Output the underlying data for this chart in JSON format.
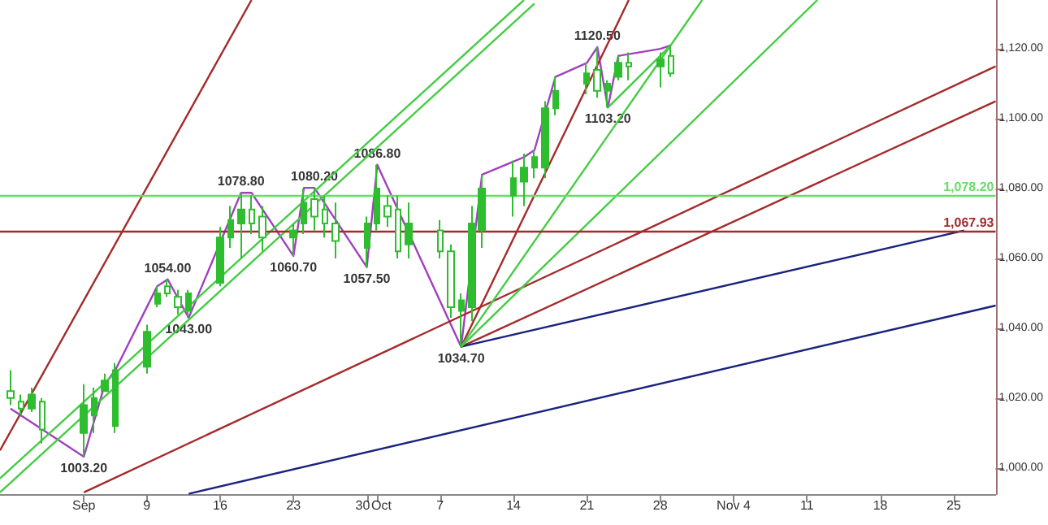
{
  "chart_data": {
    "type": "candlestick",
    "series": [
      {
        "type": "candlestick",
        "color": "#2ebd2e",
        "x": [
          "--08-27",
          "--08-28",
          "--08-29",
          "--08-30",
          "--09-03",
          "--09-04",
          "--09-05",
          "--09-06",
          "--09-09",
          "--09-10",
          "--09-11",
          "--09-12",
          "--09-13",
          "--09-16",
          "--09-17",
          "--09-18",
          "--09-19",
          "--09-20",
          "--09-23",
          "--09-24",
          "--09-25",
          "--09-26",
          "--09-27",
          "--09-30",
          "--10-01",
          "--10-02",
          "--10-03",
          "--10-04",
          "--10-07",
          "--10-08",
          "--10-09",
          "--10-10",
          "--10-11",
          "--10-14",
          "--10-15",
          "--10-16",
          "--10-17",
          "--10-18",
          "--10-21",
          "--10-22",
          "--10-23",
          "--10-24",
          "--10-25",
          "--10-28",
          "--10-29"
        ],
        "ohlc": [
          [
            1022,
            1028,
            1018,
            1020
          ],
          [
            1019,
            1021,
            1015,
            1017
          ],
          [
            1017,
            1023,
            1016,
            1021
          ],
          [
            1019,
            1020,
            1007,
            1011
          ],
          [
            1010,
            1024,
            1003.2,
            1018
          ],
          [
            1015,
            1023,
            1010,
            1020
          ],
          [
            1022,
            1027,
            1022,
            1025
          ],
          [
            1012,
            1030,
            1010,
            1028
          ],
          [
            1029,
            1041,
            1027,
            1039
          ],
          [
            1047,
            1052,
            1046,
            1050
          ],
          [
            1052,
            1054,
            1049,
            1050
          ],
          [
            1049,
            1051,
            1044,
            1046
          ],
          [
            1045,
            1051,
            1043,
            1050
          ],
          [
            1053,
            1069,
            1052,
            1066
          ],
          [
            1066,
            1075,
            1063,
            1071
          ],
          [
            1070,
            1078.8,
            1060,
            1074
          ],
          [
            1074,
            1078,
            1067,
            1070
          ],
          [
            1072,
            1075,
            1062,
            1066
          ],
          [
            1066,
            1070,
            1060.7,
            1068
          ],
          [
            1070,
            1080,
            1067,
            1076
          ],
          [
            1077,
            1080.2,
            1068,
            1072
          ],
          [
            1074,
            1078,
            1066,
            1070
          ],
          [
            1070,
            1076,
            1060,
            1065
          ],
          [
            1063,
            1072,
            1057.5,
            1070
          ],
          [
            1070,
            1086.8,
            1068,
            1080
          ],
          [
            1075,
            1078,
            1069,
            1072
          ],
          [
            1074,
            1078,
            1060,
            1062
          ],
          [
            1064,
            1076,
            1060,
            1070
          ],
          [
            1068,
            1071,
            1060,
            1062
          ],
          [
            1062,
            1064,
            1043,
            1046
          ],
          [
            1045,
            1050,
            1034.7,
            1048
          ],
          [
            1046,
            1075,
            1042,
            1070
          ],
          [
            1068,
            1084,
            1063,
            1080
          ],
          [
            1078,
            1088,
            1072,
            1083
          ],
          [
            1082,
            1090,
            1075,
            1086
          ],
          [
            1086,
            1091,
            1083,
            1089
          ],
          [
            1086,
            1105,
            1083,
            1103
          ],
          [
            1103,
            1112,
            1101,
            1108
          ],
          [
            1110,
            1116,
            1107,
            1113
          ],
          [
            1114,
            1120.5,
            1106,
            1108
          ],
          [
            1108,
            1111,
            1103.2,
            1110
          ],
          [
            1112,
            1118,
            1111,
            1116
          ],
          [
            1116,
            1119,
            1111,
            1115
          ],
          [
            1115,
            1119,
            1109,
            1117
          ],
          [
            1118,
            1121,
            1112,
            1113
          ]
        ]
      },
      {
        "type": "line",
        "color": "#a040c0",
        "x": [
          "--08-27",
          "--09-03",
          "--09-05",
          "--09-06",
          "--09-10",
          "--09-11",
          "--09-13",
          "--09-18",
          "--09-19",
          "--09-23",
          "--09-24",
          "--09-25",
          "--09-30",
          "--10-01",
          "--10-09",
          "--10-11",
          "--10-15",
          "--10-16",
          "--10-18",
          "--10-21",
          "--10-22",
          "--10-23",
          "--10-24",
          "--10-28",
          "--10-29"
        ],
        "values": [
          1017,
          1003.2,
          1024,
          1028,
          1052,
          1054,
          1043,
          1078.8,
          1078.8,
          1060.7,
          1080.2,
          1080.2,
          1057.5,
          1086.8,
          1034.7,
          1084,
          1089,
          1091,
          1112,
          1116,
          1120.5,
          1103.2,
          1118,
          1120,
          1121
        ]
      },
      {
        "type": "line",
        "color": "#a52a2a",
        "x": [
          "--08-26",
          "--09-19"
        ],
        "values": [
          1005,
          1134
        ]
      },
      {
        "type": "line",
        "color": "#a52a2a",
        "x": [
          "--10-09",
          "--10-25"
        ],
        "values": [
          1034.7,
          1134
        ]
      },
      {
        "type": "line",
        "color": "#a52a2a",
        "x": [
          "--09-03",
          "--11-29"
        ],
        "values": [
          993,
          1115
        ]
      },
      {
        "type": "line",
        "color": "#a52a2a",
        "x": [
          "--10-09",
          "--11-29"
        ],
        "values": [
          1034.7,
          1105
        ]
      },
      {
        "type": "line",
        "color": "#1a237e",
        "x": [
          "--10-09",
          "--11-26"
        ],
        "values": [
          1034.7,
          1068
        ]
      },
      {
        "type": "line",
        "color": "#1a237e",
        "x": [
          "--09-13",
          "--11-29"
        ],
        "values": [
          992.6,
          1046.5
        ]
      },
      {
        "type": "line",
        "color": "#44cc44",
        "x": [
          "--08-26",
          "--10-16"
        ],
        "values": [
          993,
          1133
        ]
      },
      {
        "type": "line",
        "color": "#44cc44",
        "x": [
          "--08-26",
          "--10-15"
        ],
        "values": [
          997,
          1134
        ]
      },
      {
        "type": "line",
        "color": "#44cc44",
        "x": [
          "--10-09",
          "--11-01"
        ],
        "values": [
          1034.7,
          1134
        ]
      },
      {
        "type": "line",
        "color": "#44cc44",
        "x": [
          "--10-09",
          "--11-12"
        ],
        "values": [
          1034.7,
          1134
        ]
      },
      {
        "type": "line",
        "color": "#44cc44",
        "x": [
          "--10-23",
          "--10-29"
        ],
        "values": [
          1103.2,
          1121
        ]
      }
    ],
    "xlim": [
      "--08-26",
      "--11-29"
    ],
    "xticks": [
      {
        "value": "--09-03",
        "label": "Sep"
      },
      {
        "value": "--09-09",
        "label": "9"
      },
      {
        "value": "--09-16",
        "label": "16"
      },
      {
        "value": "--09-23",
        "label": "23"
      },
      {
        "value": "--09-30",
        "label": "30"
      },
      {
        "value": "--10-01",
        "label": "Oct"
      },
      {
        "value": "--10-07",
        "label": "7"
      },
      {
        "value": "--10-14",
        "label": "14"
      },
      {
        "value": "--10-21",
        "label": "21"
      },
      {
        "value": "--10-28",
        "label": "28"
      },
      {
        "value": "--11-04",
        "label": "Nov 4"
      },
      {
        "value": "--11-11",
        "label": "11"
      },
      {
        "value": "--11-18",
        "label": "18"
      },
      {
        "value": "--11-25",
        "label": "25"
      }
    ],
    "ylim": [
      992.5,
      1134
    ],
    "yticks": [
      {
        "value": 1000,
        "label": "1,000.00"
      },
      {
        "value": 1020,
        "label": "1,020.00"
      },
      {
        "value": 1040,
        "label": "1,040.00"
      },
      {
        "value": 1060,
        "label": "1,060.00"
      },
      {
        "value": 1080,
        "label": "1,080.00"
      },
      {
        "value": 1100,
        "label": "1,100.00"
      },
      {
        "value": 1120,
        "label": "1,120.00"
      }
    ],
    "ref_lines": [
      {
        "axis": "y",
        "value": 1078.2,
        "label": "1,078.20",
        "color": "#66dd66"
      },
      {
        "axis": "y",
        "value": 1067.93,
        "label": "1,067.93",
        "color": "#a52a2a"
      }
    ],
    "annotations": [
      {
        "text": "1003.20",
        "x": "--09-03",
        "y": 1003.2
      },
      {
        "text": "1054.00",
        "x": "--09-11",
        "y": 1054
      },
      {
        "text": "1043.00",
        "x": "--09-13",
        "y": 1043
      },
      {
        "text": "1078.80",
        "x": "--09-18",
        "y": 1078.8
      },
      {
        "text": "1060.70",
        "x": "--09-23",
        "y": 1060.7
      },
      {
        "text": "1080.20",
        "x": "--09-25",
        "y": 1080.2
      },
      {
        "text": "1057.50",
        "x": "--09-30",
        "y": 1057.5
      },
      {
        "text": "1086.80",
        "x": "--10-01",
        "y": 1086.8
      },
      {
        "text": "1034.70",
        "x": "--10-09",
        "y": 1034.7
      },
      {
        "text": "1120.50",
        "x": "--10-22",
        "y": 1120.5
      },
      {
        "text": "1103.20",
        "x": "--10-23",
        "y": 1103.2
      }
    ]
  }
}
